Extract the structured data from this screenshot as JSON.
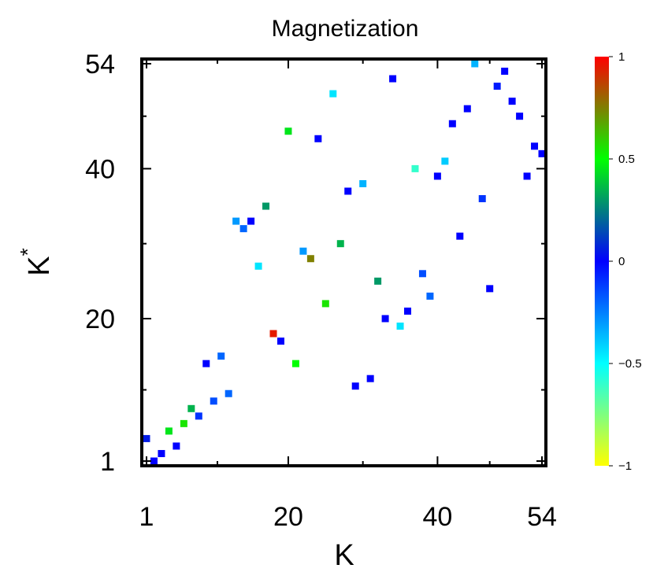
{
  "chart_data": {
    "type": "heatmap",
    "title": "Magnetization",
    "xlabel": "K",
    "ylabel": "K",
    "ylabel_superscript": "*",
    "xlim": [
      1,
      54
    ],
    "ylim": [
      1,
      54
    ],
    "x_ticks": [
      1,
      20,
      40,
      54
    ],
    "y_ticks": [
      1,
      20,
      40,
      54
    ],
    "colorbar": {
      "range": [
        -1,
        1
      ],
      "ticks": [
        "1",
        "0.5",
        "0",
        "−0.5",
        "−1"
      ],
      "tick_values": [
        1,
        0.5,
        0,
        -0.5,
        -1
      ],
      "colormap": [
        "#ffff00",
        "#00ffff",
        "#0000ff",
        "#00ff00",
        "#ff0000"
      ]
    },
    "grid": false,
    "points": [
      {
        "x": 1,
        "y": 4,
        "v": 0.05
      },
      {
        "x": 2,
        "y": 1,
        "v": 0.0
      },
      {
        "x": 3,
        "y": 2,
        "v": 0.0
      },
      {
        "x": 4,
        "y": 5,
        "v": 0.45
      },
      {
        "x": 5,
        "y": 3,
        "v": 0.0
      },
      {
        "x": 6,
        "y": 6,
        "v": 0.55
      },
      {
        "x": 7,
        "y": 8,
        "v": 0.35
      },
      {
        "x": 8,
        "y": 7,
        "v": -0.1
      },
      {
        "x": 9,
        "y": 14,
        "v": 0.0
      },
      {
        "x": 10,
        "y": 9,
        "v": -0.15
      },
      {
        "x": 11,
        "y": 15,
        "v": -0.2
      },
      {
        "x": 12,
        "y": 10,
        "v": -0.2
      },
      {
        "x": 13,
        "y": 33,
        "v": -0.3
      },
      {
        "x": 14,
        "y": 32,
        "v": -0.2
      },
      {
        "x": 15,
        "y": 33,
        "v": 0.0
      },
      {
        "x": 16,
        "y": 27,
        "v": -0.45
      },
      {
        "x": 17,
        "y": 35,
        "v": 0.3
      },
      {
        "x": 18,
        "y": 18,
        "v": 0.95
      },
      {
        "x": 19,
        "y": 17,
        "v": 0.0
      },
      {
        "x": 20,
        "y": 45,
        "v": 0.45
      },
      {
        "x": 21,
        "y": 14,
        "v": 0.5
      },
      {
        "x": 22,
        "y": 29,
        "v": -0.3
      },
      {
        "x": 23,
        "y": 28,
        "v": 0.75
      },
      {
        "x": 24,
        "y": 44,
        "v": 0.0
      },
      {
        "x": 25,
        "y": 22,
        "v": 0.55
      },
      {
        "x": 26,
        "y": 50,
        "v": -0.45
      },
      {
        "x": 27,
        "y": 30,
        "v": 0.35
      },
      {
        "x": 28,
        "y": 37,
        "v": 0.0
      },
      {
        "x": 29,
        "y": 11,
        "v": 0.0
      },
      {
        "x": 30,
        "y": 38,
        "v": -0.35
      },
      {
        "x": 31,
        "y": 12,
        "v": 0.0
      },
      {
        "x": 32,
        "y": 25,
        "v": 0.3
      },
      {
        "x": 33,
        "y": 20,
        "v": 0.0
      },
      {
        "x": 34,
        "y": 52,
        "v": 0.0
      },
      {
        "x": 35,
        "y": 19,
        "v": -0.45
      },
      {
        "x": 36,
        "y": 21,
        "v": 0.0
      },
      {
        "x": 37,
        "y": 40,
        "v": -0.6
      },
      {
        "x": 38,
        "y": 26,
        "v": -0.15
      },
      {
        "x": 39,
        "y": 23,
        "v": -0.2
      },
      {
        "x": 40,
        "y": 39,
        "v": 0.0
      },
      {
        "x": 41,
        "y": 41,
        "v": -0.4
      },
      {
        "x": 42,
        "y": 46,
        "v": 0.0
      },
      {
        "x": 43,
        "y": 31,
        "v": 0.0
      },
      {
        "x": 44,
        "y": 48,
        "v": 0.0
      },
      {
        "x": 45,
        "y": 54,
        "v": -0.35
      },
      {
        "x": 46,
        "y": 36,
        "v": -0.1
      },
      {
        "x": 47,
        "y": 24,
        "v": 0.0
      },
      {
        "x": 48,
        "y": 51,
        "v": -0.05
      },
      {
        "x": 49,
        "y": 53,
        "v": 0.0
      },
      {
        "x": 50,
        "y": 49,
        "v": 0.0
      },
      {
        "x": 51,
        "y": 47,
        "v": 0.0
      },
      {
        "x": 52,
        "y": 39,
        "v": 0.0
      },
      {
        "x": 53,
        "y": 43,
        "v": 0.0
      },
      {
        "x": 54,
        "y": 42,
        "v": 0.0
      }
    ]
  }
}
